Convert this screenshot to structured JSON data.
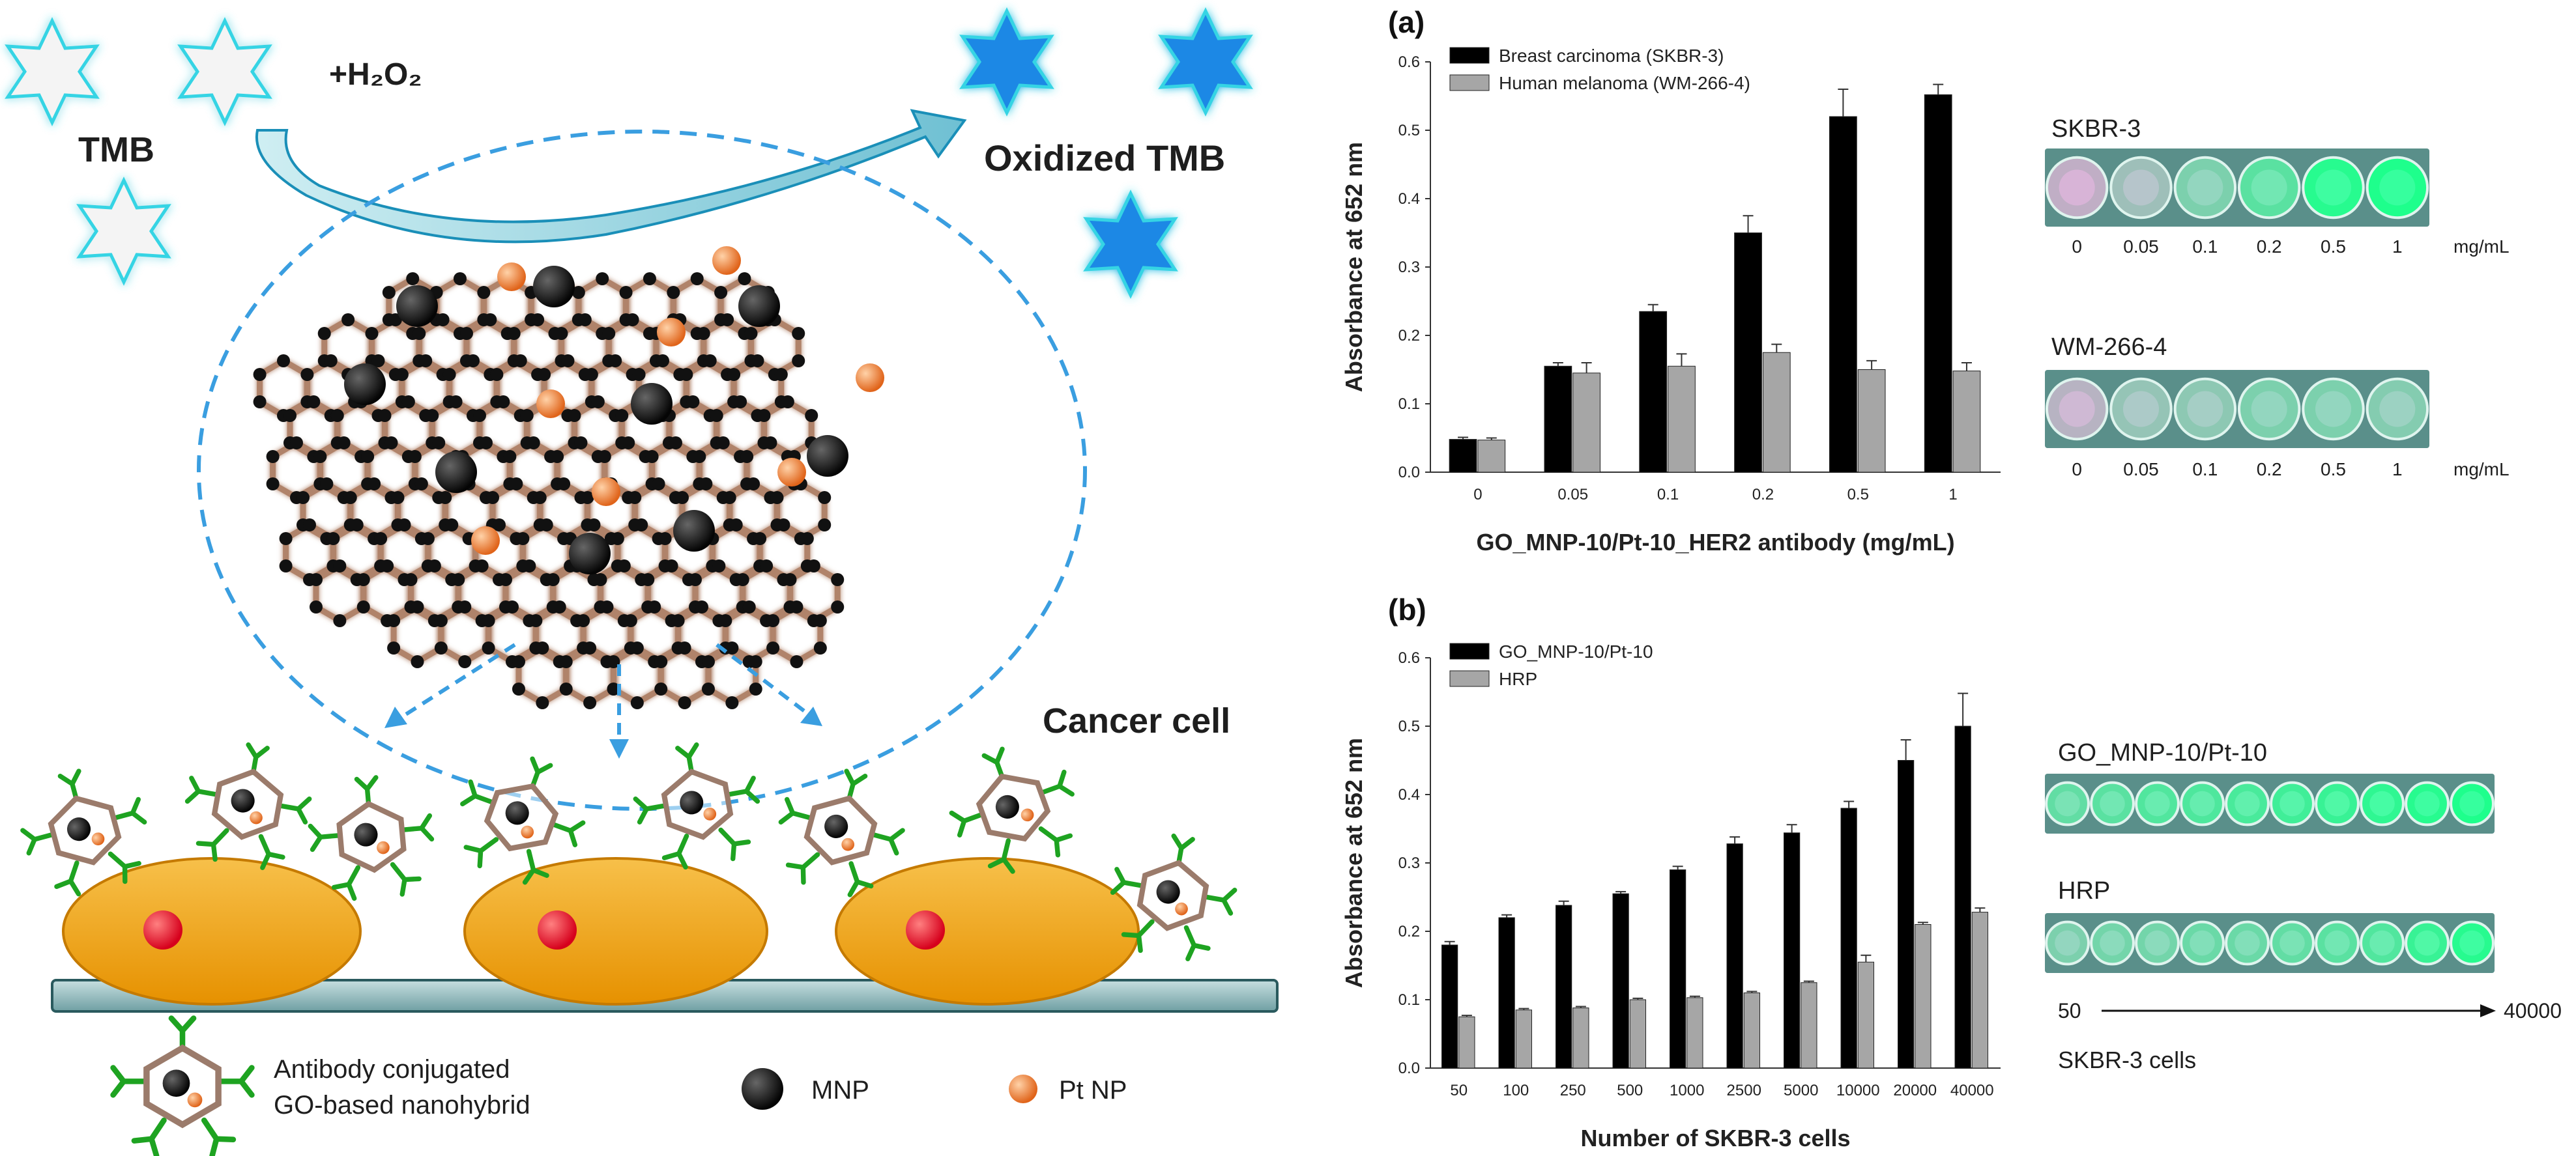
{
  "scheme": {
    "tmb_label": "TMB",
    "h2o2_label": "+H₂O₂",
    "oxidized_label": "Oxidized TMB",
    "cancer_cell_label": "Cancer cell",
    "legend_antibody_line1": "Antibody conjugated",
    "legend_antibody_line2": "GO-based nanohybrid",
    "legend_mnp": "MNP",
    "legend_pt": "Pt NP",
    "colors": {
      "tmb_star": "#f4f4f4",
      "oxidized_star": "#1e88e5",
      "cell": "#f2a20f",
      "mnp": "#111111",
      "pt": "#f0803a",
      "dash": "#3a9ee0"
    }
  },
  "photos": {
    "a_top_label": "SKBR-3",
    "a_bottom_label": "WM-266-4",
    "a_ticks": [
      "0",
      "0.05",
      "0.1",
      "0.2",
      "0.5",
      "1"
    ],
    "a_unit": "mg/mL",
    "a_top_intensity": [
      0.05,
      0.25,
      0.45,
      0.65,
      0.95,
      1.0
    ],
    "a_bottom_intensity": [
      0.1,
      0.3,
      0.35,
      0.45,
      0.45,
      0.4
    ],
    "b_top_label": "GO_MNP-10/Pt-10",
    "b_bottom_label": "HRP",
    "b_range_start": "50",
    "b_range_end": "40000",
    "b_caption": "SKBR-3 cells",
    "b_top_intensity": [
      0.6,
      0.65,
      0.7,
      0.72,
      0.75,
      0.8,
      0.85,
      0.9,
      0.95,
      1.0
    ],
    "b_bottom_intensity": [
      0.45,
      0.5,
      0.5,
      0.55,
      0.55,
      0.6,
      0.65,
      0.7,
      0.85,
      0.95
    ]
  },
  "chart_data": [
    {
      "panel": "(a)",
      "type": "bar",
      "ylabel": "Absorbance at 652 nm",
      "xlabel": "GO_MNP-10/Pt-10_HER2 antibody (mg/mL)",
      "ylim": [
        0,
        0.6
      ],
      "yticks": [
        "0.0",
        "0.1",
        "0.2",
        "0.3",
        "0.4",
        "0.5",
        "0.6"
      ],
      "categories": [
        "0",
        "0.05",
        "0.1",
        "0.2",
        "0.5",
        "1"
      ],
      "legend_position": "top-left",
      "series": [
        {
          "name": "Breast carcinoma (SKBR-3)",
          "color": "#000000",
          "values": [
            0.048,
            0.155,
            0.235,
            0.35,
            0.52,
            0.552
          ],
          "errors": [
            0.003,
            0.005,
            0.01,
            0.025,
            0.04,
            0.015
          ]
        },
        {
          "name": "Human melanoma (WM-266-4)",
          "color": "#a6a6a6",
          "values": [
            0.047,
            0.145,
            0.155,
            0.175,
            0.15,
            0.148
          ],
          "errors": [
            0.003,
            0.015,
            0.018,
            0.012,
            0.013,
            0.012
          ]
        }
      ]
    },
    {
      "panel": "(b)",
      "type": "bar",
      "ylabel": "Absorbance at 652 nm",
      "xlabel": "Number of SKBR-3 cells",
      "ylim": [
        0,
        0.6
      ],
      "yticks": [
        "0.0",
        "0.1",
        "0.2",
        "0.3",
        "0.4",
        "0.5",
        "0.6"
      ],
      "categories": [
        "50",
        "100",
        "250",
        "500",
        "1000",
        "2500",
        "5000",
        "10000",
        "20000",
        "40000"
      ],
      "legend_position": "top-left",
      "series": [
        {
          "name": "GO_MNP-10/Pt-10",
          "color": "#000000",
          "values": [
            0.18,
            0.22,
            0.238,
            0.255,
            0.29,
            0.328,
            0.344,
            0.38,
            0.45,
            0.5
          ],
          "errors": [
            0.005,
            0.004,
            0.006,
            0.003,
            0.005,
            0.01,
            0.012,
            0.01,
            0.03,
            0.048
          ]
        },
        {
          "name": "HRP",
          "color": "#a6a6a6",
          "values": [
            0.075,
            0.085,
            0.088,
            0.1,
            0.103,
            0.11,
            0.125,
            0.155,
            0.21,
            0.228
          ],
          "errors": [
            0.002,
            0.002,
            0.002,
            0.002,
            0.002,
            0.002,
            0.002,
            0.01,
            0.003,
            0.006
          ]
        }
      ]
    }
  ]
}
